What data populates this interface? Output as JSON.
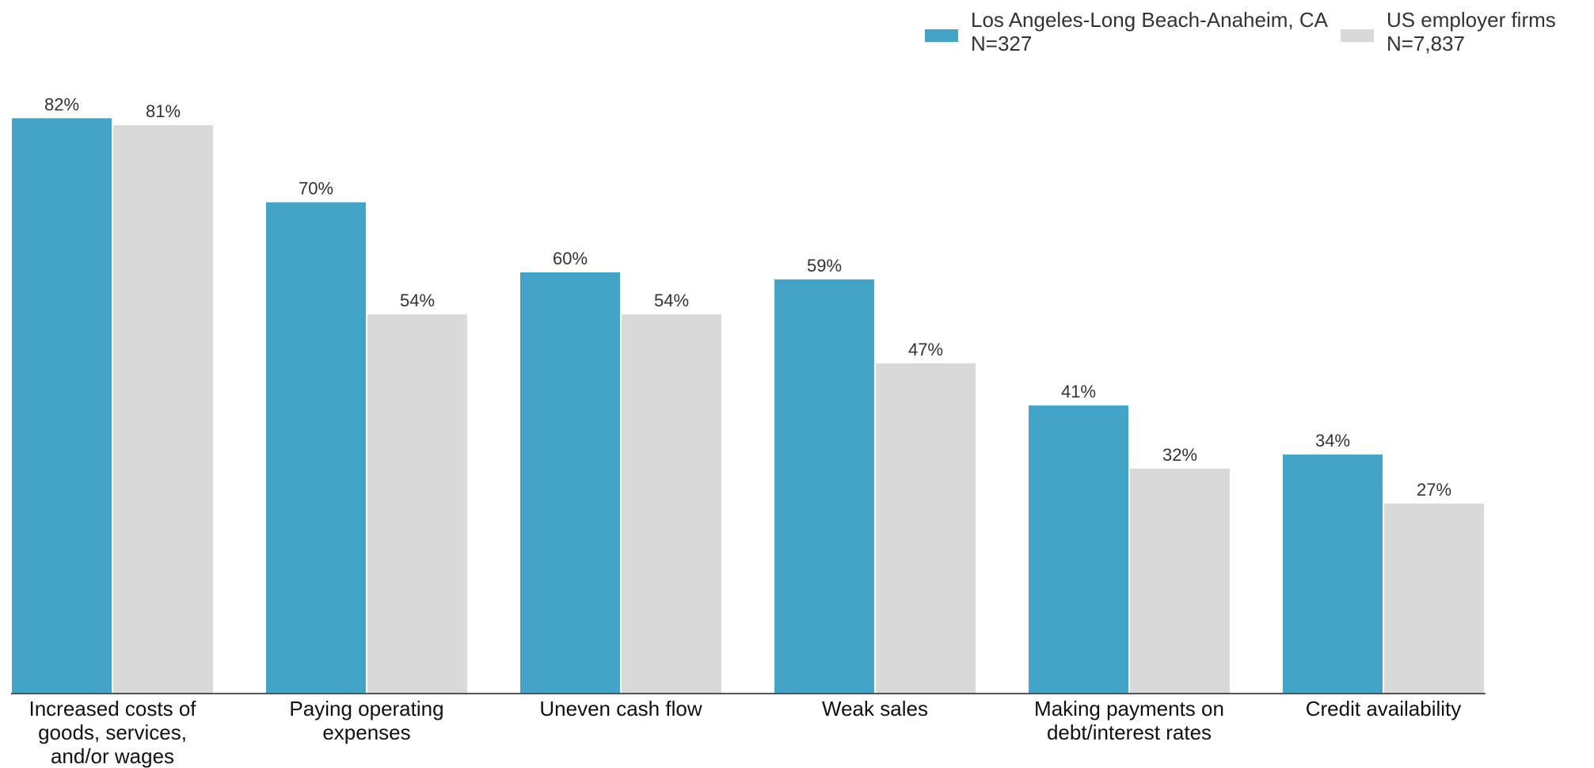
{
  "colors": {
    "la": "#43a4c7",
    "us": "#d9d9d9",
    "axis": "#555555"
  },
  "legend": {
    "la": {
      "name": "Los Angeles-Long Beach-Anaheim, CA",
      "n": "N=327"
    },
    "us": {
      "name": "US employer firms",
      "n": "N=7,837"
    }
  },
  "chart_data": {
    "type": "bar",
    "categories": [
      [
        "Increased costs of",
        "goods, services,",
        "and/or wages"
      ],
      [
        "Paying operating",
        "expenses"
      ],
      [
        "Uneven cash flow"
      ],
      [
        "Weak sales"
      ],
      [
        "Making payments on",
        "debt/interest rates"
      ],
      [
        "Credit availability"
      ]
    ],
    "series": [
      {
        "name": "Los Angeles-Long Beach-Anaheim, CA",
        "key": "la",
        "values": [
          82,
          70,
          60,
          59,
          41,
          34
        ]
      },
      {
        "name": "US employer firms",
        "key": "us",
        "values": [
          81,
          54,
          54,
          47,
          32,
          27
        ]
      }
    ],
    "value_suffix": "%",
    "title": "",
    "xlabel": "",
    "ylabel": "",
    "ylim": [
      0,
      100
    ],
    "grid": false,
    "legend_position": "top-right"
  }
}
